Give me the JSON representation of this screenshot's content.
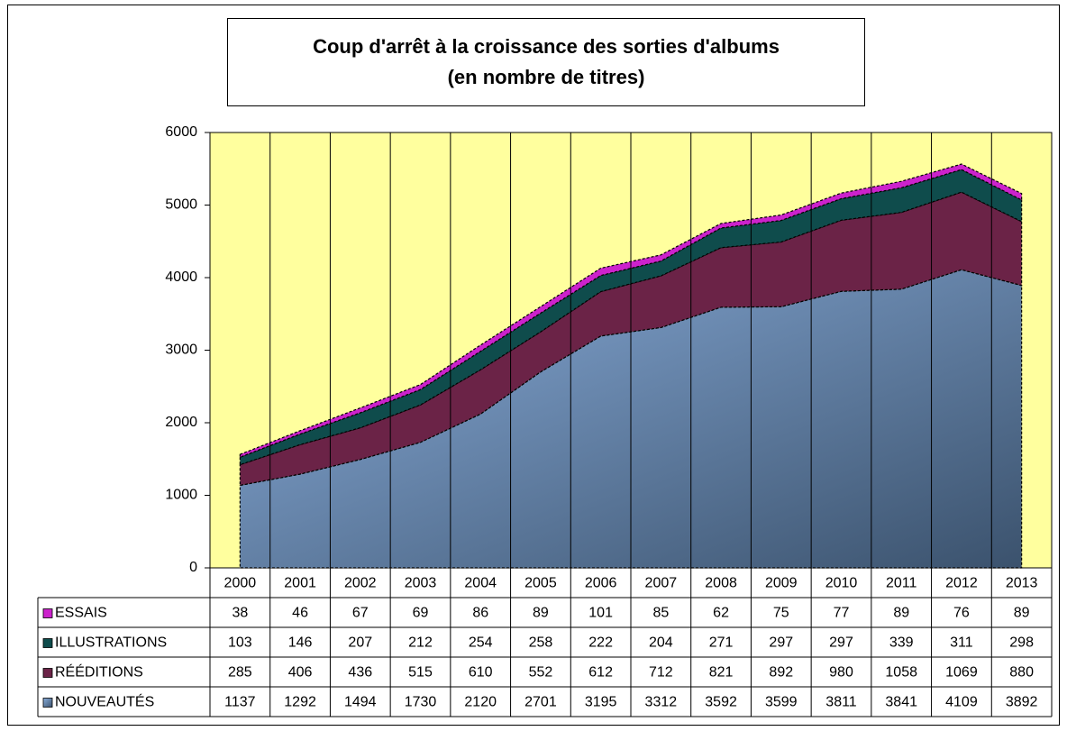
{
  "chart_data": {
    "type": "stacked_area",
    "title": "Coup d'arrêt à la croissance des sorties d'albums",
    "subtitle": "(en nombre de titres)",
    "categories": [
      "2000",
      "2001",
      "2002",
      "2003",
      "2004",
      "2005",
      "2006",
      "2007",
      "2008",
      "2009",
      "2010",
      "2011",
      "2012",
      "2013"
    ],
    "series": [
      {
        "name": "ESSAIS",
        "color": "#cc22cc",
        "values": [
          38,
          46,
          67,
          69,
          86,
          89,
          101,
          85,
          62,
          75,
          77,
          89,
          76,
          89
        ]
      },
      {
        "name": "ILLUSTRATIONS",
        "color": "#0f4c4c",
        "values": [
          103,
          146,
          207,
          212,
          254,
          258,
          222,
          204,
          271,
          297,
          297,
          339,
          311,
          298
        ]
      },
      {
        "name": "RÉÉDITIONS",
        "color": "#6b2347",
        "values": [
          285,
          406,
          436,
          515,
          610,
          552,
          612,
          712,
          821,
          892,
          980,
          1058,
          1069,
          880
        ]
      },
      {
        "name": "NOUVEAUTÉS",
        "color": "#8aaedc",
        "values": [
          1137,
          1292,
          1494,
          1730,
          2120,
          2701,
          3195,
          3312,
          3592,
          3599,
          3811,
          3841,
          4109,
          3892
        ]
      }
    ],
    "ylim": [
      0,
      6000
    ],
    "yticks": [
      0,
      1000,
      2000,
      3000,
      4000,
      5000,
      6000
    ],
    "plot_background": "#ffff9e",
    "grid": "vertical",
    "legend": "table"
  }
}
